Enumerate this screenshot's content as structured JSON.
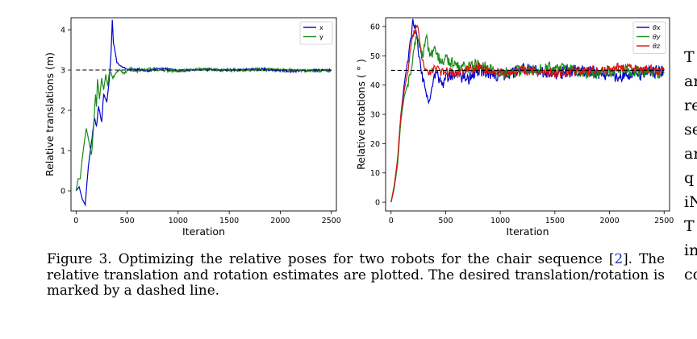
{
  "chart_data": [
    {
      "type": "line",
      "xlabel": "Iteration",
      "ylabel": "Relative translations (m)",
      "xlim": [
        -50,
        2550
      ],
      "ylim": [
        -0.5,
        4.3
      ],
      "xticks": [
        0,
        500,
        1000,
        1500,
        2000,
        2500
      ],
      "yticks": [
        0,
        1,
        2,
        3,
        4
      ],
      "legend_position": "top-right",
      "target": 3.0,
      "target_style": "dashed",
      "series": [
        {
          "name": "x",
          "color": "#0000cc",
          "x": [
            0,
            30,
            60,
            90,
            100,
            120,
            150,
            180,
            200,
            220,
            250,
            270,
            300,
            320,
            340,
            355,
            365,
            380,
            400,
            430,
            470,
            520,
            600,
            700,
            800,
            1000,
            1200,
            1500,
            1800,
            2100,
            2500
          ],
          "y": [
            0.0,
            0.1,
            -0.2,
            -0.35,
            0.0,
            0.6,
            1.2,
            1.8,
            1.6,
            2.1,
            1.7,
            2.4,
            2.2,
            2.6,
            3.3,
            4.25,
            3.7,
            3.5,
            3.2,
            3.1,
            3.05,
            3.0,
            3.02,
            2.98,
            3.05,
            2.98,
            3.02,
            3.0,
            3.03,
            2.97,
            3.0
          ]
        },
        {
          "name": "y",
          "color": "#1a8a1a",
          "x": [
            0,
            20,
            40,
            60,
            80,
            100,
            120,
            150,
            170,
            190,
            200,
            210,
            230,
            250,
            270,
            290,
            310,
            330,
            360,
            400,
            430,
            470,
            520,
            600,
            700,
            800,
            1000,
            1200,
            1500,
            1800,
            2100,
            2500
          ],
          "y": [
            0.0,
            0.3,
            0.3,
            0.8,
            1.2,
            1.55,
            1.3,
            0.9,
            1.5,
            2.4,
            2.1,
            2.75,
            2.3,
            2.8,
            2.5,
            2.9,
            2.6,
            3.0,
            2.8,
            2.95,
            3.0,
            2.9,
            3.05,
            2.97,
            3.03,
            3.0,
            2.98,
            3.02,
            2.99,
            3.01,
            3.0,
            2.98
          ]
        }
      ]
    },
    {
      "type": "line",
      "xlabel": "Iteration",
      "ylabel": "Relative rotations ( ° )",
      "xlim": [
        -50,
        2550
      ],
      "ylim": [
        -3,
        63
      ],
      "xticks": [
        0,
        500,
        1000,
        1500,
        2000,
        2500
      ],
      "yticks": [
        0,
        10,
        20,
        30,
        40,
        50,
        60
      ],
      "legend_position": "top-right",
      "target": 45,
      "target_style": "dashed",
      "series": [
        {
          "name": "θx",
          "color": "#0000cc",
          "x": [
            0,
            30,
            60,
            90,
            120,
            150,
            180,
            200,
            220,
            240,
            260,
            290,
            320,
            350,
            380,
            420,
            460,
            520,
            600,
            700,
            800,
            1000,
            1200,
            1500,
            1800,
            2100,
            2500
          ],
          "y": [
            0,
            5,
            14,
            30,
            40,
            48,
            56,
            61,
            60,
            55,
            48,
            42,
            38,
            35,
            41,
            45,
            40,
            43,
            44,
            42,
            45,
            43,
            46,
            44,
            45,
            43,
            45
          ]
        },
        {
          "name": "θy",
          "color": "#1a8a1a",
          "x": [
            0,
            30,
            60,
            90,
            120,
            150,
            180,
            210,
            240,
            260,
            290,
            320,
            340,
            360,
            400,
            450,
            500,
            600,
            700,
            800,
            1000,
            1200,
            1500,
            1800,
            2100,
            2500
          ],
          "y": [
            0,
            5,
            13,
            28,
            36,
            40,
            44,
            52,
            58,
            54,
            50,
            57,
            53,
            50,
            52,
            48,
            49,
            47,
            46,
            47,
            44,
            45,
            46,
            44,
            45,
            44
          ]
        },
        {
          "name": "θz",
          "color": "#e01010",
          "x": [
            0,
            30,
            60,
            90,
            120,
            150,
            180,
            210,
            240,
            260,
            280,
            300,
            330,
            360,
            400,
            450,
            500,
            600,
            700,
            800,
            1000,
            1200,
            1500,
            1800,
            2100,
            2500
          ],
          "y": [
            0,
            6,
            15,
            30,
            38,
            44,
            53,
            58,
            60,
            56,
            50,
            47,
            45,
            44,
            46,
            44,
            45,
            44,
            45,
            46,
            44,
            45,
            44,
            45,
            46,
            45
          ]
        }
      ]
    }
  ],
  "caption": {
    "label": "Figure 3.",
    "text_before_cite": "Optimizing the relative poses for two robots for the chair sequence [",
    "cite": "2",
    "text_after_cite": "]. The relative translation and rotation estimates are plotted. The desired translation/rotation is marked by a dashed line."
  },
  "side_text": [
    "T",
    "ar",
    "re",
    "se",
    "ar",
    "q",
    "iN",
    "T",
    "in",
    "co"
  ]
}
